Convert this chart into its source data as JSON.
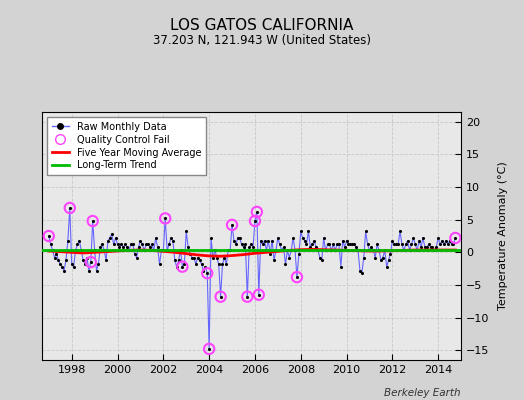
{
  "title": "LOS GATOS CALIFORNIA",
  "subtitle": "37.203 N, 121.943 W (United States)",
  "ylabel": "Temperature Anomaly (°C)",
  "credit": "Berkeley Earth",
  "xlim": [
    1996.7,
    2015.0
  ],
  "ylim": [
    -16.5,
    21.5
  ],
  "yticks": [
    -15,
    -10,
    -5,
    0,
    5,
    10,
    15,
    20
  ],
  "xticks": [
    1998,
    2000,
    2002,
    2004,
    2006,
    2008,
    2010,
    2012,
    2014
  ],
  "bg_color": "#e8e8e8",
  "fig_color": "#d3d3d3",
  "raw_line_color": "#6666ff",
  "raw_dot_color": "#000000",
  "qc_color": "#ff44ff",
  "moving_avg_color": "#ff0000",
  "trend_color": "#00bb00",
  "raw_monthly": [
    [
      1997.0,
      2.5
    ],
    [
      1997.083,
      1.2
    ],
    [
      1997.167,
      0.3
    ],
    [
      1997.25,
      -0.8
    ],
    [
      1997.333,
      -0.2
    ],
    [
      1997.417,
      -1.2
    ],
    [
      1997.5,
      -1.8
    ],
    [
      1997.583,
      -2.2
    ],
    [
      1997.667,
      -2.8
    ],
    [
      1997.75,
      -1.2
    ],
    [
      1997.833,
      1.8
    ],
    [
      1997.917,
      6.8
    ],
    [
      1998.0,
      -1.8
    ],
    [
      1998.083,
      -2.2
    ],
    [
      1998.167,
      0.3
    ],
    [
      1998.25,
      1.2
    ],
    [
      1998.333,
      1.8
    ],
    [
      1998.417,
      0.3
    ],
    [
      1998.5,
      -1.2
    ],
    [
      1998.583,
      -1.8
    ],
    [
      1998.667,
      -0.8
    ],
    [
      1998.75,
      -2.8
    ],
    [
      1998.833,
      -1.5
    ],
    [
      1998.917,
      4.8
    ],
    [
      1999.0,
      0.3
    ],
    [
      1999.083,
      -2.8
    ],
    [
      1999.167,
      -1.8
    ],
    [
      1999.25,
      0.8
    ],
    [
      1999.333,
      1.2
    ],
    [
      1999.417,
      0.3
    ],
    [
      1999.5,
      -1.2
    ],
    [
      1999.583,
      1.8
    ],
    [
      1999.667,
      2.2
    ],
    [
      1999.75,
      2.8
    ],
    [
      1999.833,
      1.2
    ],
    [
      1999.917,
      2.2
    ],
    [
      2000.0,
      1.2
    ],
    [
      2000.083,
      0.8
    ],
    [
      2000.167,
      1.2
    ],
    [
      2000.25,
      0.8
    ],
    [
      2000.333,
      1.2
    ],
    [
      2000.417,
      0.8
    ],
    [
      2000.5,
      0.3
    ],
    [
      2000.583,
      1.2
    ],
    [
      2000.667,
      1.2
    ],
    [
      2000.75,
      -0.2
    ],
    [
      2000.833,
      -0.8
    ],
    [
      2000.917,
      0.8
    ],
    [
      2001.0,
      1.8
    ],
    [
      2001.083,
      1.2
    ],
    [
      2001.167,
      0.3
    ],
    [
      2001.25,
      1.2
    ],
    [
      2001.333,
      1.2
    ],
    [
      2001.417,
      0.8
    ],
    [
      2001.5,
      1.2
    ],
    [
      2001.583,
      0.3
    ],
    [
      2001.667,
      2.2
    ],
    [
      2001.75,
      0.8
    ],
    [
      2001.833,
      -1.8
    ],
    [
      2001.917,
      0.3
    ],
    [
      2002.0,
      0.3
    ],
    [
      2002.083,
      5.2
    ],
    [
      2002.167,
      0.3
    ],
    [
      2002.25,
      1.2
    ],
    [
      2002.333,
      2.2
    ],
    [
      2002.417,
      1.8
    ],
    [
      2002.5,
      -1.2
    ],
    [
      2002.583,
      -2.2
    ],
    [
      2002.667,
      -1.2
    ],
    [
      2002.75,
      0.3
    ],
    [
      2002.833,
      -2.2
    ],
    [
      2002.917,
      -1.8
    ],
    [
      2003.0,
      3.2
    ],
    [
      2003.083,
      0.8
    ],
    [
      2003.167,
      -0.2
    ],
    [
      2003.25,
      -0.8
    ],
    [
      2003.333,
      -0.8
    ],
    [
      2003.417,
      -1.8
    ],
    [
      2003.5,
      -0.8
    ],
    [
      2003.583,
      -1.2
    ],
    [
      2003.667,
      -1.8
    ],
    [
      2003.75,
      -2.8
    ],
    [
      2003.833,
      -2.2
    ],
    [
      2003.917,
      -3.2
    ],
    [
      2004.0,
      -14.8
    ],
    [
      2004.083,
      2.2
    ],
    [
      2004.167,
      -0.8
    ],
    [
      2004.25,
      0.3
    ],
    [
      2004.333,
      -0.8
    ],
    [
      2004.417,
      -1.8
    ],
    [
      2004.5,
      -6.8
    ],
    [
      2004.583,
      -1.8
    ],
    [
      2004.667,
      -0.8
    ],
    [
      2004.75,
      -1.8
    ],
    [
      2004.833,
      0.3
    ],
    [
      2004.917,
      0.3
    ],
    [
      2005.0,
      4.2
    ],
    [
      2005.083,
      1.8
    ],
    [
      2005.167,
      1.2
    ],
    [
      2005.25,
      2.2
    ],
    [
      2005.333,
      2.2
    ],
    [
      2005.417,
      1.2
    ],
    [
      2005.5,
      0.8
    ],
    [
      2005.583,
      1.2
    ],
    [
      2005.667,
      -6.8
    ],
    [
      2005.75,
      0.8
    ],
    [
      2005.833,
      1.2
    ],
    [
      2005.917,
      0.8
    ],
    [
      2006.0,
      4.8
    ],
    [
      2006.083,
      6.2
    ],
    [
      2006.167,
      -6.5
    ],
    [
      2006.25,
      1.8
    ],
    [
      2006.333,
      1.2
    ],
    [
      2006.417,
      1.8
    ],
    [
      2006.5,
      0.3
    ],
    [
      2006.583,
      1.8
    ],
    [
      2006.667,
      -0.2
    ],
    [
      2006.75,
      1.8
    ],
    [
      2006.833,
      -1.2
    ],
    [
      2006.917,
      0.3
    ],
    [
      2007.0,
      2.2
    ],
    [
      2007.083,
      1.2
    ],
    [
      2007.167,
      0.3
    ],
    [
      2007.25,
      0.8
    ],
    [
      2007.333,
      -1.8
    ],
    [
      2007.417,
      0.3
    ],
    [
      2007.5,
      -0.8
    ],
    [
      2007.583,
      0.3
    ],
    [
      2007.667,
      2.2
    ],
    [
      2007.75,
      0.3
    ],
    [
      2007.833,
      -3.8
    ],
    [
      2007.917,
      -0.2
    ],
    [
      2008.0,
      3.2
    ],
    [
      2008.083,
      2.2
    ],
    [
      2008.167,
      1.8
    ],
    [
      2008.25,
      1.2
    ],
    [
      2008.333,
      3.2
    ],
    [
      2008.417,
      0.8
    ],
    [
      2008.5,
      1.2
    ],
    [
      2008.583,
      1.8
    ],
    [
      2008.667,
      0.8
    ],
    [
      2008.75,
      0.3
    ],
    [
      2008.833,
      -0.8
    ],
    [
      2008.917,
      -1.2
    ],
    [
      2009.0,
      2.2
    ],
    [
      2009.083,
      0.3
    ],
    [
      2009.167,
      1.2
    ],
    [
      2009.25,
      1.2
    ],
    [
      2009.333,
      0.3
    ],
    [
      2009.417,
      1.2
    ],
    [
      2009.5,
      0.3
    ],
    [
      2009.583,
      1.2
    ],
    [
      2009.667,
      1.2
    ],
    [
      2009.75,
      -2.2
    ],
    [
      2009.833,
      1.8
    ],
    [
      2009.917,
      0.8
    ],
    [
      2010.0,
      1.8
    ],
    [
      2010.083,
      1.2
    ],
    [
      2010.167,
      1.2
    ],
    [
      2010.25,
      1.2
    ],
    [
      2010.333,
      1.2
    ],
    [
      2010.417,
      0.8
    ],
    [
      2010.5,
      0.3
    ],
    [
      2010.583,
      -2.8
    ],
    [
      2010.667,
      -3.2
    ],
    [
      2010.75,
      -0.8
    ],
    [
      2010.833,
      3.2
    ],
    [
      2010.917,
      1.2
    ],
    [
      2011.0,
      0.3
    ],
    [
      2011.083,
      0.8
    ],
    [
      2011.167,
      0.3
    ],
    [
      2011.25,
      -0.8
    ],
    [
      2011.333,
      1.2
    ],
    [
      2011.417,
      0.3
    ],
    [
      2011.5,
      -1.2
    ],
    [
      2011.583,
      -0.8
    ],
    [
      2011.667,
      0.3
    ],
    [
      2011.75,
      -2.2
    ],
    [
      2011.833,
      -1.2
    ],
    [
      2011.917,
      -0.2
    ],
    [
      2012.0,
      1.8
    ],
    [
      2012.083,
      1.2
    ],
    [
      2012.167,
      1.2
    ],
    [
      2012.25,
      1.2
    ],
    [
      2012.333,
      3.2
    ],
    [
      2012.417,
      1.2
    ],
    [
      2012.5,
      0.3
    ],
    [
      2012.583,
      1.2
    ],
    [
      2012.667,
      1.8
    ],
    [
      2012.75,
      0.3
    ],
    [
      2012.833,
      1.2
    ],
    [
      2012.917,
      2.2
    ],
    [
      2013.0,
      1.2
    ],
    [
      2013.083,
      0.3
    ],
    [
      2013.167,
      1.8
    ],
    [
      2013.25,
      0.8
    ],
    [
      2013.333,
      2.2
    ],
    [
      2013.417,
      0.8
    ],
    [
      2013.5,
      0.8
    ],
    [
      2013.583,
      1.2
    ],
    [
      2013.667,
      0.8
    ],
    [
      2013.75,
      0.8
    ],
    [
      2013.833,
      0.3
    ],
    [
      2013.917,
      0.8
    ],
    [
      2014.0,
      2.2
    ],
    [
      2014.083,
      1.2
    ],
    [
      2014.167,
      1.8
    ],
    [
      2014.25,
      1.2
    ],
    [
      2014.333,
      1.8
    ],
    [
      2014.417,
      1.2
    ],
    [
      2014.5,
      1.8
    ],
    [
      2014.583,
      1.2
    ],
    [
      2014.667,
      1.2
    ],
    [
      2014.75,
      2.2
    ]
  ],
  "qc_fail_points": [
    [
      1997.0,
      2.5
    ],
    [
      1997.917,
      6.8
    ],
    [
      1998.833,
      -1.5
    ],
    [
      1998.917,
      4.8
    ],
    [
      2002.083,
      5.2
    ],
    [
      2002.833,
      -2.2
    ],
    [
      2003.917,
      -3.2
    ],
    [
      2004.0,
      -14.8
    ],
    [
      2004.5,
      -6.8
    ],
    [
      2005.0,
      4.2
    ],
    [
      2005.667,
      -6.8
    ],
    [
      2006.0,
      4.8
    ],
    [
      2006.083,
      6.2
    ],
    [
      2006.167,
      -6.5
    ],
    [
      2007.833,
      -3.8
    ],
    [
      2014.75,
      2.2
    ]
  ],
  "moving_avg": [
    [
      1997.0,
      0.2
    ],
    [
      1997.5,
      0.1
    ],
    [
      1998.0,
      0.0
    ],
    [
      1998.5,
      -0.1
    ],
    [
      1999.0,
      0.0
    ],
    [
      1999.5,
      0.1
    ],
    [
      2000.0,
      0.2
    ],
    [
      2000.5,
      0.3
    ],
    [
      2001.0,
      0.35
    ],
    [
      2001.5,
      0.3
    ],
    [
      2002.0,
      0.15
    ],
    [
      2002.5,
      0.0
    ],
    [
      2003.0,
      -0.2
    ],
    [
      2003.5,
      -0.4
    ],
    [
      2004.0,
      -0.55
    ],
    [
      2004.5,
      -0.6
    ],
    [
      2005.0,
      -0.5
    ],
    [
      2005.5,
      -0.35
    ],
    [
      2006.0,
      -0.15
    ],
    [
      2006.5,
      0.0
    ],
    [
      2007.0,
      0.15
    ],
    [
      2007.5,
      0.3
    ],
    [
      2008.0,
      0.4
    ],
    [
      2008.5,
      0.45
    ],
    [
      2009.0,
      0.4
    ],
    [
      2009.5,
      0.35
    ],
    [
      2010.0,
      0.3
    ],
    [
      2010.5,
      0.25
    ],
    [
      2011.0,
      0.2
    ],
    [
      2011.5,
      0.2
    ],
    [
      2012.0,
      0.25
    ],
    [
      2012.5,
      0.3
    ],
    [
      2013.0,
      0.35
    ],
    [
      2013.5,
      0.35
    ],
    [
      2014.0,
      0.35
    ],
    [
      2014.75,
      0.35
    ]
  ],
  "trend_x": [
    1996.7,
    2015.0
  ],
  "trend_y": [
    0.3,
    0.3
  ]
}
